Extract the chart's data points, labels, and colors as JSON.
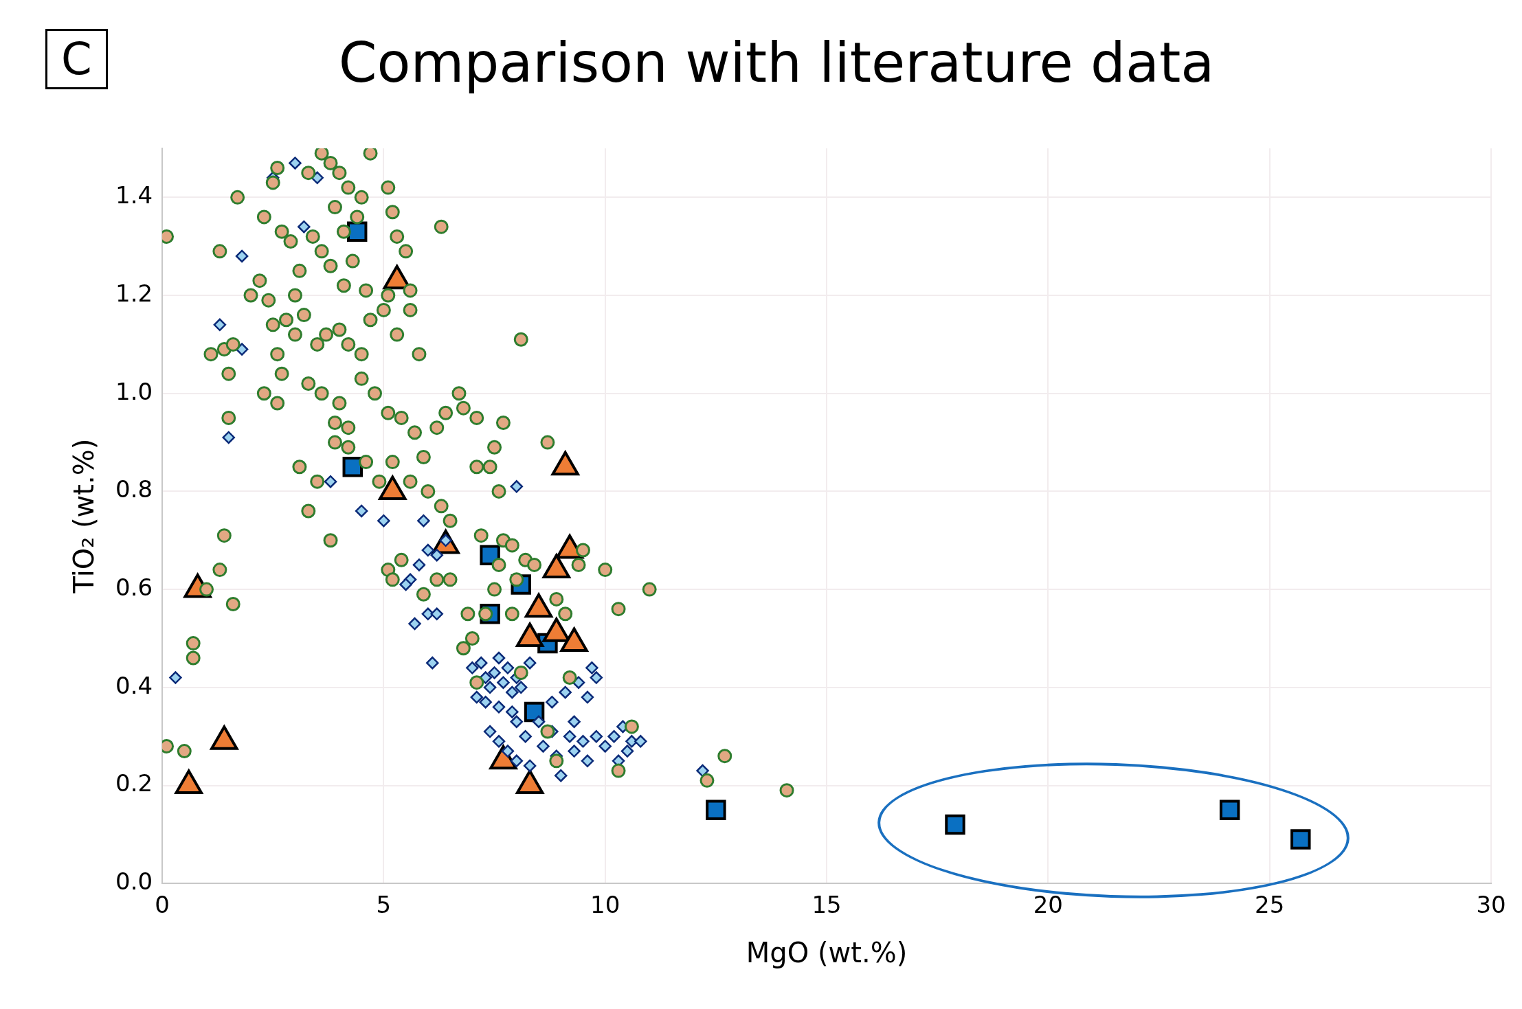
{
  "chart_data": {
    "type": "scatter",
    "title": "Comparison with literature data",
    "xlabel": "MgO (wt.%)",
    "ylabel": "TiO₂ (wt.%)",
    "annotations": [
      "C"
    ],
    "xlim": [
      0,
      30
    ],
    "xticks": [
      0,
      5,
      10,
      15,
      20,
      25,
      30
    ],
    "ylim": [
      0,
      1.5
    ],
    "yticks": [
      {
        "value": 0,
        "label": "0.0"
      },
      {
        "value": 0.2,
        "label": "0.2"
      },
      {
        "value": 0.4,
        "label": "0.4"
      },
      {
        "value": 0.6,
        "label": "0.6"
      },
      {
        "value": 0.8,
        "label": "0.8"
      },
      {
        "value": 1.0,
        "label": "1.0"
      },
      {
        "value": 1.2,
        "label": "1.2"
      },
      {
        "value": 1.4,
        "label": "1.4"
      }
    ],
    "grid": true,
    "legend": false,
    "series": [
      {
        "marker": "circle",
        "color": "#e2a883",
        "x": [
          0.1,
          0.1,
          0.5,
          0.7,
          0.7,
          1.0,
          1.4,
          1.3,
          1.6,
          1.3,
          1.7,
          1.1,
          1.4,
          1.6,
          1.5,
          1.5,
          2.0,
          2.2,
          2.3,
          2.4,
          2.5,
          2.6,
          2.7,
          2.9,
          3.0,
          3.1,
          3.3,
          3.4,
          3.6,
          3.8,
          4.0,
          4.2,
          4.7,
          4.5,
          5.1,
          5.2,
          5.5,
          5.3,
          6.3,
          2.5,
          2.6,
          2.7,
          2.3,
          2.6,
          2.8,
          3.0,
          3.2,
          3.5,
          3.7,
          4.0,
          4.2,
          4.5,
          4.7,
          5.0,
          5.3,
          5.6,
          5.8,
          3.3,
          3.6,
          4.0,
          3.9,
          4.2,
          4.5,
          4.8,
          5.1,
          5.4,
          5.7,
          6.2,
          6.4,
          3.1,
          3.5,
          3.3,
          3.8,
          3.9,
          4.2,
          4.6,
          4.9,
          5.2,
          5.6,
          5.9,
          6.0,
          6.3,
          6.5,
          6.7,
          6.8,
          7.1,
          7.5,
          7.4,
          7.1,
          7.6,
          7.7,
          8.1,
          8.7,
          3.8,
          4.1,
          4.3,
          3.6,
          4.6,
          5.1,
          5.6,
          3.9,
          4.4,
          4.1,
          5.1,
          5.2,
          5.4,
          5.9,
          6.2,
          6.5,
          6.9,
          6.8,
          7.0,
          7.3,
          7.5,
          7.7,
          7.2,
          7.9,
          8.2,
          7.9,
          8.4,
          9.5,
          9.4,
          10.0,
          10.3,
          11.0,
          8.9,
          9.1,
          9.2,
          8.1,
          7.1,
          8.7,
          10.6,
          10.3,
          8.9,
          12.3,
          12.7,
          14.1,
          7.6,
          8.0
        ],
        "values": [
          1.32,
          0.28,
          0.27,
          0.49,
          0.46,
          0.6,
          0.71,
          0.64,
          0.57,
          1.29,
          1.4,
          1.08,
          1.09,
          1.1,
          1.04,
          0.95,
          1.2,
          1.23,
          1.36,
          1.19,
          1.43,
          1.46,
          1.33,
          1.31,
          1.2,
          1.25,
          1.45,
          1.32,
          1.49,
          1.47,
          1.45,
          1.42,
          1.49,
          1.4,
          1.42,
          1.37,
          1.29,
          1.32,
          1.34,
          1.14,
          1.08,
          1.04,
          1.0,
          0.98,
          1.15,
          1.12,
          1.16,
          1.1,
          1.12,
          1.13,
          1.1,
          1.08,
          1.15,
          1.17,
          1.12,
          1.17,
          1.08,
          1.02,
          1.0,
          0.98,
          0.94,
          0.93,
          1.03,
          1.0,
          0.96,
          0.95,
          0.92,
          0.93,
          0.96,
          0.85,
          0.82,
          0.76,
          0.7,
          0.9,
          0.89,
          0.86,
          0.82,
          0.86,
          0.82,
          0.87,
          0.8,
          0.77,
          0.74,
          1.0,
          0.97,
          0.95,
          0.89,
          0.85,
          0.85,
          0.8,
          0.94,
          1.11,
          0.9,
          1.26,
          1.22,
          1.27,
          1.29,
          1.21,
          1.2,
          1.21,
          1.38,
          1.36,
          1.33,
          0.64,
          0.62,
          0.66,
          0.59,
          0.62,
          0.62,
          0.55,
          0.48,
          0.5,
          0.55,
          0.6,
          0.7,
          0.71,
          0.69,
          0.66,
          0.55,
          0.65,
          0.68,
          0.65,
          0.64,
          0.56,
          0.6,
          0.58,
          0.55,
          0.42,
          0.43,
          0.41,
          0.31,
          0.32,
          0.23,
          0.25,
          0.21,
          0.26,
          0.19,
          0.65,
          0.62
        ]
      },
      {
        "marker": "diamond",
        "color": "#9dd3f0",
        "x": [
          3.0,
          2.5,
          3.5,
          3.2,
          1.8,
          1.3,
          1.8,
          1.5,
          0.3,
          3.8,
          4.5,
          5.0,
          5.9,
          8.0,
          5.8,
          5.6,
          5.5,
          6.0,
          6.2,
          5.7,
          6.0,
          6.2,
          6.1,
          6.4,
          7.0,
          7.2,
          7.3,
          7.4,
          7.5,
          7.6,
          7.7,
          7.8,
          7.9,
          8.0,
          7.1,
          7.3,
          7.6,
          7.9,
          8.1,
          8.3,
          7.4,
          7.6,
          7.8,
          8.0,
          8.2,
          8.5,
          8.6,
          8.8,
          8.9,
          9.0,
          9.2,
          9.3,
          9.5,
          9.6,
          9.8,
          10.0,
          10.2,
          10.4,
          10.6,
          10.8,
          10.3,
          10.5,
          9.1,
          9.4,
          9.6,
          9.7,
          9.8,
          8.3,
          8.0,
          12.2,
          8.8,
          9.3
        ],
        "values": [
          1.47,
          1.44,
          1.44,
          1.34,
          1.28,
          1.14,
          1.09,
          0.91,
          0.42,
          0.82,
          0.76,
          0.74,
          0.74,
          0.81,
          0.65,
          0.62,
          0.61,
          0.68,
          0.67,
          0.53,
          0.55,
          0.55,
          0.45,
          0.7,
          0.44,
          0.45,
          0.42,
          0.4,
          0.43,
          0.46,
          0.41,
          0.44,
          0.39,
          0.42,
          0.38,
          0.37,
          0.36,
          0.35,
          0.4,
          0.45,
          0.31,
          0.29,
          0.27,
          0.33,
          0.3,
          0.33,
          0.28,
          0.31,
          0.26,
          0.22,
          0.3,
          0.27,
          0.29,
          0.25,
          0.3,
          0.28,
          0.3,
          0.32,
          0.29,
          0.29,
          0.25,
          0.27,
          0.39,
          0.41,
          0.38,
          0.44,
          0.42,
          0.24,
          0.25,
          0.23,
          0.37,
          0.33
        ]
      },
      {
        "marker": "triangle",
        "color": "#ee7d35",
        "x": [
          5.3,
          9.1,
          5.2,
          0.8,
          6.4,
          9.2,
          8.9,
          8.5,
          8.3,
          8.9,
          9.3,
          1.4,
          0.6,
          7.7,
          8.3
        ],
        "values": [
          1.23,
          0.85,
          0.8,
          0.6,
          0.69,
          0.68,
          0.64,
          0.56,
          0.5,
          0.51,
          0.49,
          0.29,
          0.2,
          0.25,
          0.2
        ]
      },
      {
        "marker": "square",
        "color": "#0a70c2",
        "x": [
          4.4,
          4.3,
          7.4,
          8.1,
          7.4,
          8.7,
          8.4,
          12.5,
          17.9,
          24.1,
          25.7
        ],
        "values": [
          1.33,
          0.85,
          0.67,
          0.61,
          0.55,
          0.49,
          0.35,
          0.15,
          0.12,
          0.15,
          0.09
        ]
      }
    ]
  }
}
